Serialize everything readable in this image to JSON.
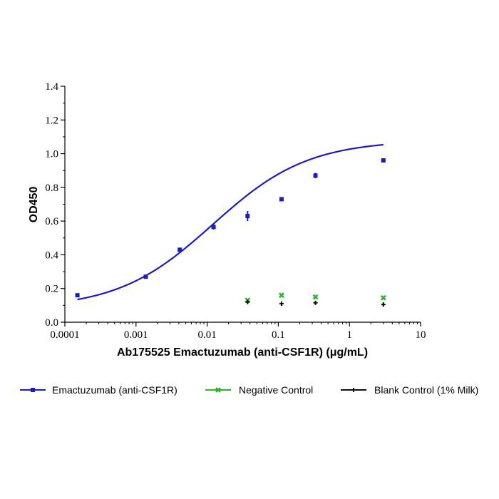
{
  "chart_data": {
    "type": "scatter",
    "title": "",
    "xlabel": "Ab175525 Emactuzumab (anti-CSF1R) (μg/mL)",
    "ylabel": "OD450",
    "xscale": "log",
    "xlim": [
      0.0001,
      10
    ],
    "ylim": [
      0,
      1.4
    ],
    "xticks": [
      0.0001,
      0.001,
      0.01,
      0.1,
      1,
      10
    ],
    "xtick_labels": [
      "0.0001",
      "0.001",
      "0.01",
      "0.1",
      "1",
      "10"
    ],
    "yticks": [
      0,
      0.2,
      0.4,
      0.6,
      0.8,
      1.0,
      1.2,
      1.4
    ],
    "ytick_labels": [
      "0.0",
      "0.2",
      "0.4",
      "0.6",
      "0.8",
      "1.0",
      "1.2",
      "1.4"
    ],
    "legend_position": "bottom",
    "series": [
      {
        "name": "Emactuzumab (anti-CSF1R)",
        "color": "#1b1bbf",
        "marker": "square",
        "fit": "4PL",
        "x": [
          0.00015,
          0.00137,
          0.00412,
          0.0123,
          0.037,
          0.111,
          0.333,
          3.0
        ],
        "y": [
          0.16,
          0.27,
          0.43,
          0.565,
          0.63,
          0.73,
          0.87,
          0.96
        ],
        "err": [
          0.003,
          0.004,
          0.006,
          0.015,
          0.03,
          0.005,
          0.016,
          0.004
        ]
      },
      {
        "name": "Negative Control",
        "color": "#2db52d",
        "marker": "x",
        "x": [
          0.037,
          0.111,
          0.333,
          3.0
        ],
        "y": [
          0.13,
          0.16,
          0.15,
          0.145
        ]
      },
      {
        "name": "Blank Control (1% Milk)",
        "color": "#111111",
        "marker": "cross",
        "x": [
          0.037,
          0.111,
          0.333,
          3.0
        ],
        "y": [
          0.12,
          0.11,
          0.115,
          0.105
        ],
        "err": [
          0.01,
          0.012,
          0.012,
          0.012
        ]
      }
    ]
  }
}
